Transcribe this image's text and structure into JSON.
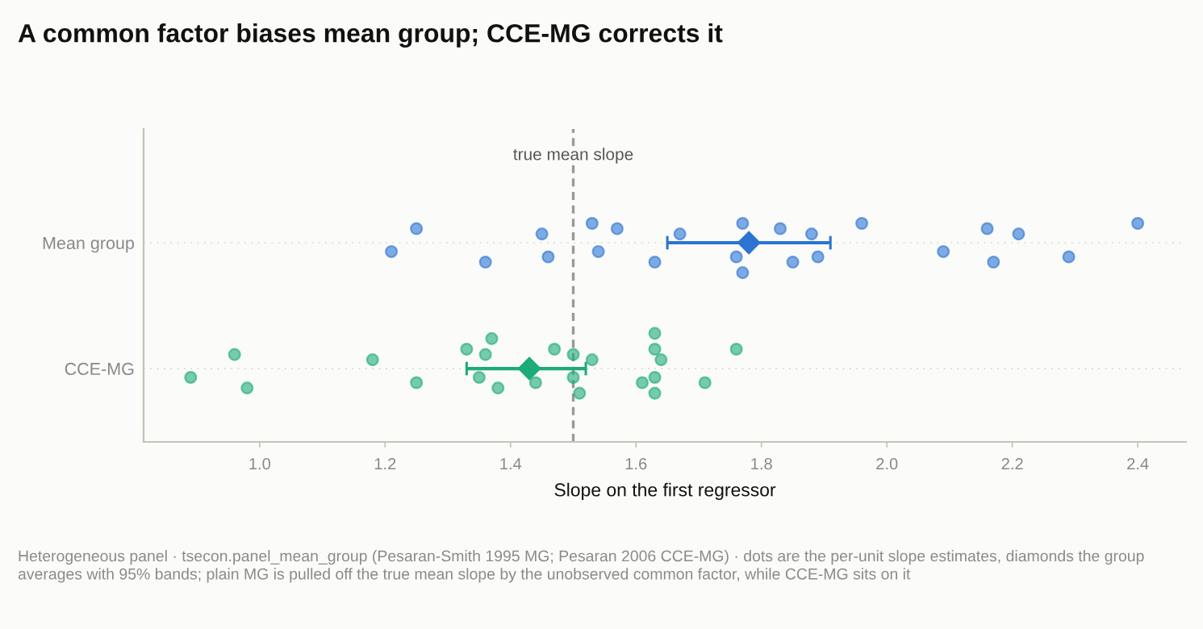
{
  "chart_data": {
    "type": "scatter",
    "title": "A common factor biases mean group; CCE-MG corrects it",
    "xlabel": "Slope on the first regressor",
    "orientation": "horizontal",
    "categories": [
      "Mean group",
      "CCE-MG"
    ],
    "series": [
      {
        "marker": "circle",
        "color": "#2b74d3",
        "x": [
          "Mean group",
          "Mean group",
          "Mean group",
          "Mean group",
          "Mean group",
          "Mean group",
          "Mean group",
          "Mean group",
          "Mean group",
          "Mean group",
          "Mean group",
          "Mean group",
          "Mean group",
          "Mean group",
          "Mean group",
          "Mean group",
          "Mean group",
          "Mean group",
          "Mean group",
          "Mean group",
          "Mean group",
          "Mean group",
          "Mean group",
          "Mean group"
        ],
        "values": [
          1.21,
          1.25,
          1.36,
          1.45,
          1.46,
          1.53,
          1.54,
          1.57,
          1.63,
          1.67,
          1.76,
          1.77,
          1.77,
          1.83,
          1.85,
          1.88,
          1.89,
          1.96,
          2.09,
          2.16,
          2.17,
          2.21,
          2.29,
          2.4
        ]
      },
      {
        "marker": "circle",
        "color": "#1dab78",
        "x": [
          "CCE-MG",
          "CCE-MG",
          "CCE-MG",
          "CCE-MG",
          "CCE-MG",
          "CCE-MG",
          "CCE-MG",
          "CCE-MG",
          "CCE-MG",
          "CCE-MG",
          "CCE-MG",
          "CCE-MG",
          "CCE-MG",
          "CCE-MG",
          "CCE-MG",
          "CCE-MG",
          "CCE-MG",
          "CCE-MG",
          "CCE-MG",
          "CCE-MG",
          "CCE-MG",
          "CCE-MG",
          "CCE-MG",
          "CCE-MG"
        ],
        "values": [
          0.89,
          0.96,
          0.98,
          1.18,
          1.25,
          1.33,
          1.35,
          1.36,
          1.38,
          1.37,
          1.44,
          1.47,
          1.5,
          1.5,
          1.51,
          1.53,
          1.61,
          1.63,
          1.63,
          1.63,
          1.63,
          1.64,
          1.71,
          1.76
        ]
      },
      {
        "marker": "diamond",
        "color": "#2b74d3",
        "x": [
          "Mean group"
        ],
        "values": [
          1.78
        ],
        "errors": [
          [
            1.65,
            1.91
          ]
        ]
      },
      {
        "marker": "diamond",
        "color": "#1dab78",
        "x": [
          "CCE-MG"
        ],
        "values": [
          1.43
        ],
        "errors": [
          [
            1.33,
            1.52
          ]
        ]
      }
    ],
    "xlim": [
      0.815,
      2.477
    ],
    "xticks": [
      {
        "value": 1.0,
        "label": "1.0"
      },
      {
        "value": 1.2,
        "label": "1.2"
      },
      {
        "value": 1.4,
        "label": "1.4"
      },
      {
        "value": 1.6,
        "label": "1.6"
      },
      {
        "value": 1.8,
        "label": "1.8"
      },
      {
        "value": 2.0,
        "label": "2.0"
      },
      {
        "value": 2.2,
        "label": "2.2"
      },
      {
        "value": 2.4,
        "label": "2.4"
      }
    ],
    "ref_lines": [
      {
        "axis": "x",
        "value": 1.5,
        "label": "true mean slope",
        "color": "#999999",
        "line_style": "dashed"
      }
    ],
    "grid": "y",
    "annotations": [
      "Heterogeneous panel · tsecon.panel_mean_group (Pesaran-Smith 1995 MG; Pesaran 2006 CCE-MG) · dots are the per-unit slope estimates, diamonds the group averages with 95% bands; plain MG is pulled off the true mean slope by the unobserved common factor, while CCE-MG sits on it"
    ]
  }
}
